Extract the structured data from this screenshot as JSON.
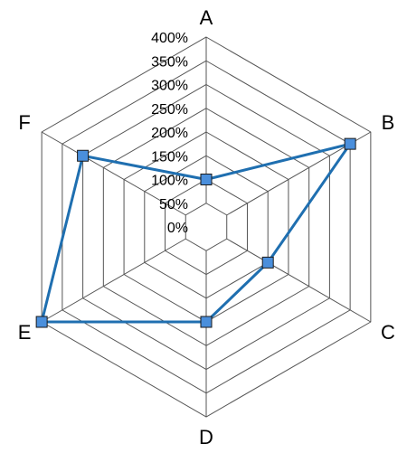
{
  "chart_data": {
    "type": "radar",
    "title": "",
    "axes": [
      "A",
      "B",
      "C",
      "D",
      "E",
      "F"
    ],
    "rlim": [
      0,
      400
    ],
    "tick_values": [
      0,
      50,
      100,
      150,
      200,
      250,
      300,
      350,
      400
    ],
    "tick_labels": [
      "0%",
      "50%",
      "100%",
      "150%",
      "200%",
      "250%",
      "300%",
      "350%",
      "400%"
    ],
    "grid": true,
    "legend": "none",
    "series": [
      {
        "values": [
          100,
          350,
          150,
          200,
          400,
          300
        ],
        "color": "#1f6fb0",
        "marker_fill": "#4a8fdc",
        "marker": "square"
      }
    ]
  }
}
